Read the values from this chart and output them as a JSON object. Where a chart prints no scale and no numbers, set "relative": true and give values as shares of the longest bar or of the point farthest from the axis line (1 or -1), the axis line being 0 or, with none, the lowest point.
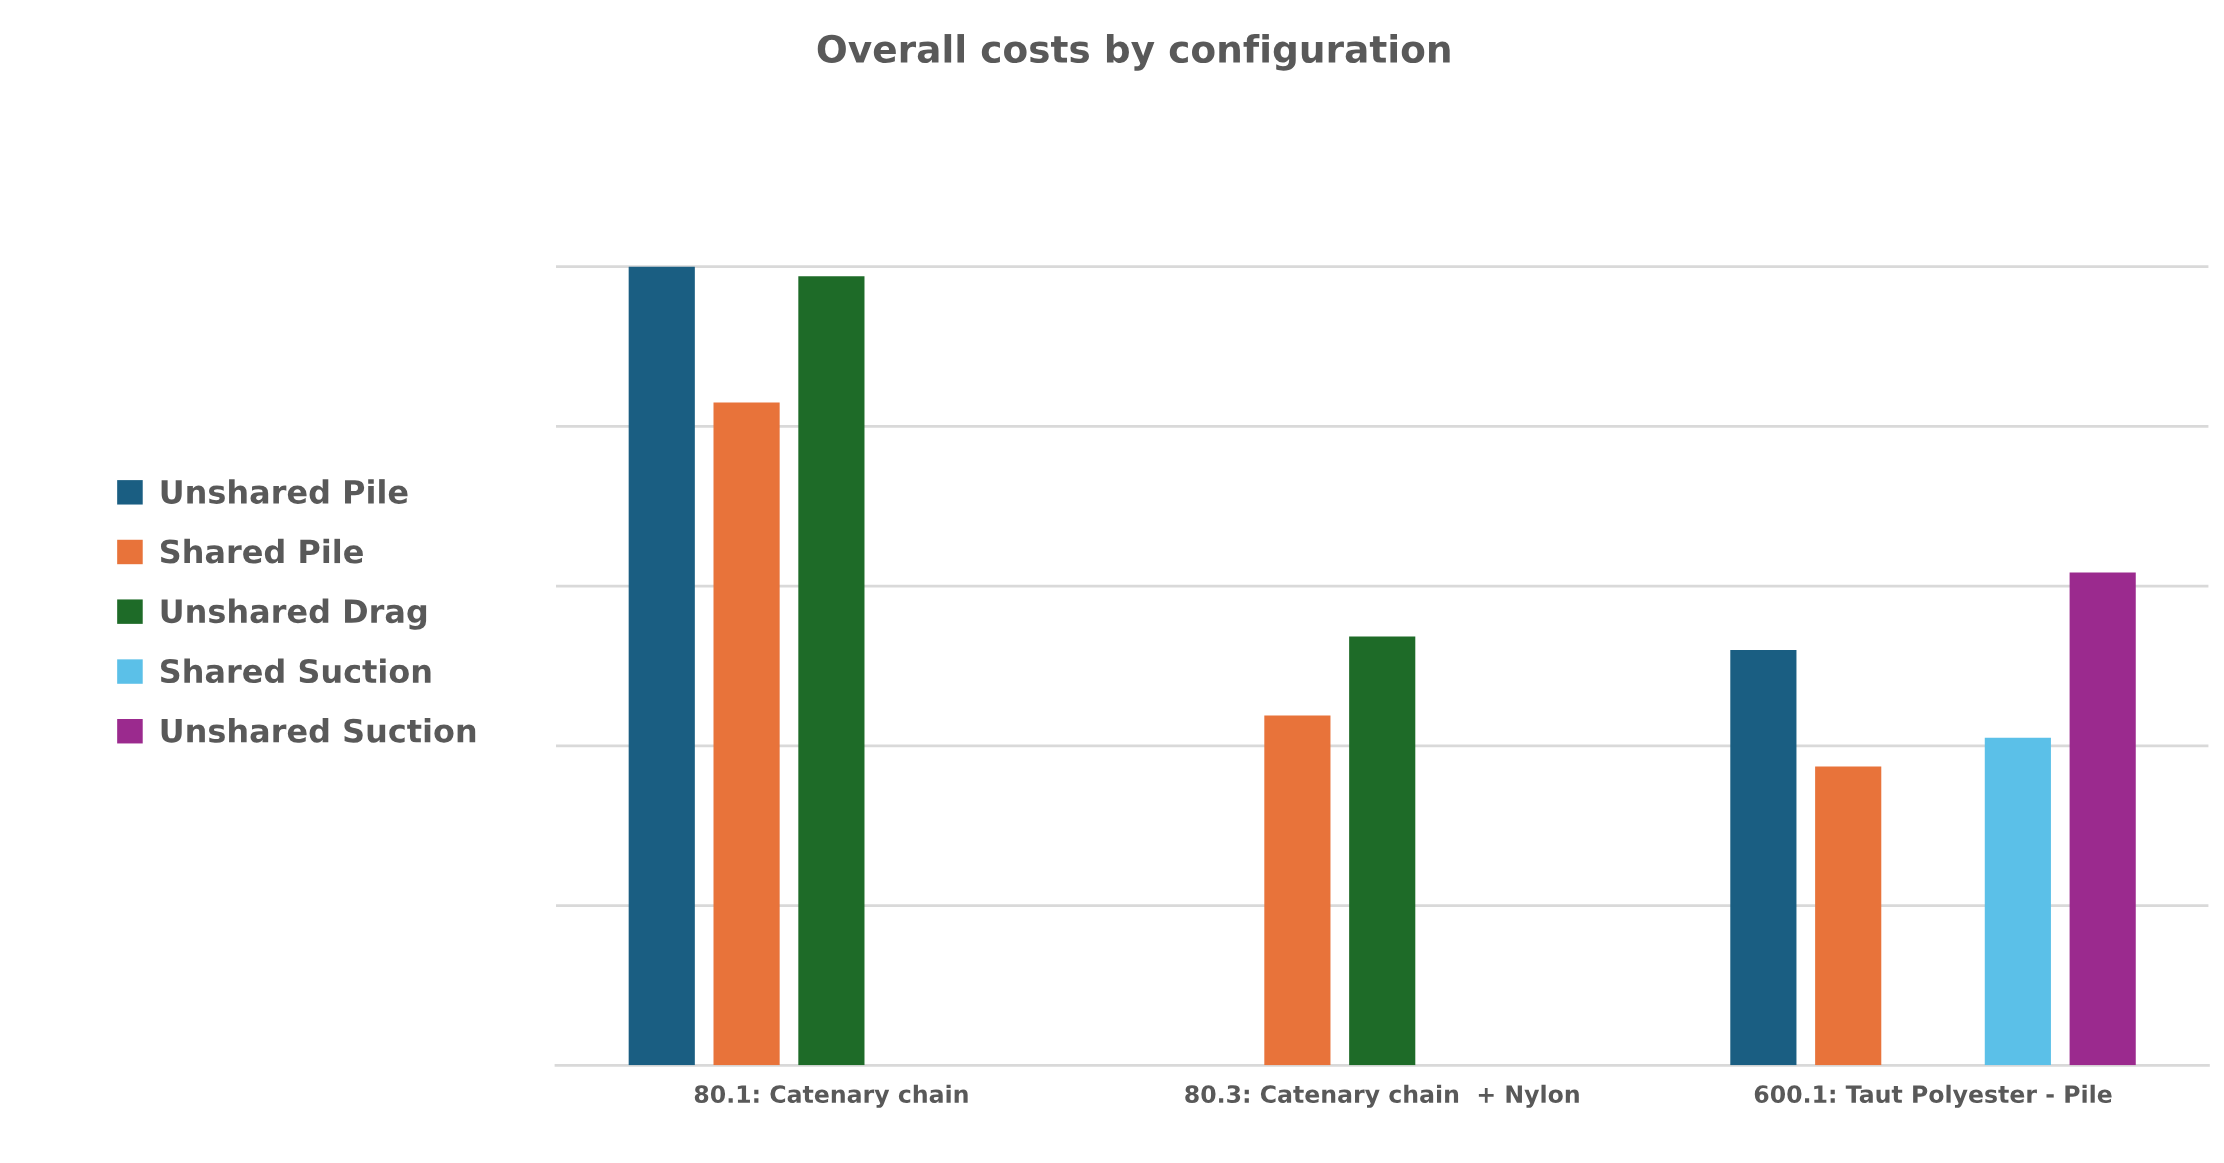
{
  "chart_data": {
    "type": "bar",
    "title": "Overall costs by configuration",
    "relative": true,
    "grid": "y",
    "legend": "left",
    "categories": [
      "80.1: Catenary chain",
      "80.3: Catenary chain  + Nylon",
      "600.1: Taut Polyester - Pile"
    ],
    "series": [
      {
        "name": "Unshared Pile",
        "color": "#1a5e82",
        "values": [
          1,
          null,
          0.52
        ]
      },
      {
        "name": "Shared Pile",
        "color": "#e8733a",
        "values": [
          0.83,
          0.438,
          0.374
        ]
      },
      {
        "name": "Unshared Drag",
        "color": "#1e6b28",
        "values": [
          0.988,
          0.537,
          null
        ]
      },
      {
        "name": "Shared Suction",
        "color": "#5bc0e8",
        "values": [
          null,
          null,
          0.41
        ]
      },
      {
        "name": "Unshared Suction",
        "color": "#9b2a8e",
        "values": [
          null,
          null,
          0.617
        ]
      }
    ]
  }
}
